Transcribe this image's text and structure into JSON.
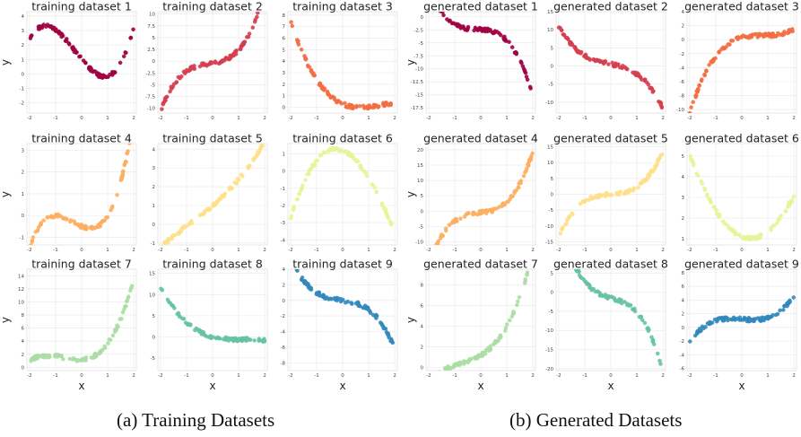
{
  "captions": {
    "left": "(a) Training Datasets",
    "right": "(b) Generated Datasets"
  },
  "axis_labels": {
    "x": "x",
    "y": "y"
  },
  "chart_data": [
    {
      "type": "scatter",
      "title": "training dataset 1",
      "color": "#9e0142",
      "xlim": [
        -2.1,
        2.1
      ],
      "ylim": [
        -2.7,
        4.3
      ],
      "xticks": [
        -2,
        -1,
        0,
        1,
        2
      ],
      "yticks": [
        -2,
        -1,
        0,
        1,
        2,
        3,
        4
      ],
      "coeffs": [
        1.0,
        -2.2,
        0.45,
        0.6
      ],
      "x_range": [
        -2,
        2
      ]
    },
    {
      "type": "scatter",
      "title": "training dataset 2",
      "color": "#d53e4f",
      "xlim": [
        -2.1,
        2.1
      ],
      "ylim": [
        -11,
        10.5
      ],
      "xticks": [
        -2,
        -1,
        0,
        1,
        2
      ],
      "yticks": [
        -10.0,
        -7.5,
        -5.0,
        -2.5,
        0.0,
        2.5,
        5.0,
        7.5,
        10.0
      ],
      "coeffs": [
        -0.45,
        0.9,
        0.6,
        1.35
      ],
      "x_range": [
        -2,
        2
      ]
    },
    {
      "type": "scatter",
      "title": "training dataset 3",
      "color": "#f46d43",
      "xlim": [
        -2.1,
        2.1
      ],
      "ylim": [
        -0.5,
        8.3
      ],
      "xticks": [
        -2,
        -1,
        0,
        1,
        2
      ],
      "yticks": [
        0,
        1,
        2,
        3,
        4,
        5,
        6,
        7,
        8
      ],
      "coeffs": [
        0.3,
        -0.97,
        0.92,
        -0.21
      ],
      "x_range": [
        -2,
        2
      ]
    },
    {
      "type": "scatter",
      "title": "training dataset 4",
      "color": "#fdae61",
      "xlim": [
        -2.1,
        2.1
      ],
      "ylim": [
        -1.35,
        3.3
      ],
      "xticks": [
        -2,
        -1,
        0,
        1,
        2
      ],
      "yticks": [
        -1,
        0,
        1,
        2,
        3
      ],
      "coeffs": [
        -0.5,
        -0.5,
        0.5,
        0.5
      ],
      "x_range": [
        -2,
        2
      ]
    },
    {
      "type": "scatter",
      "title": "training dataset 5",
      "color": "#fee08b",
      "xlim": [
        -2.1,
        2.1
      ],
      "ylim": [
        -1.1,
        4.3
      ],
      "xticks": [
        -2,
        -1,
        0,
        1,
        2
      ],
      "yticks": [
        -1,
        0,
        1,
        2,
        3,
        4
      ],
      "coeffs": [
        1.0,
        1.2,
        0.15,
        0.05
      ],
      "x_range": [
        -2,
        2
      ]
    },
    {
      "type": "scatter",
      "title": "training dataset 6",
      "color": "#e6f598",
      "xlim": [
        -2.1,
        2.1
      ],
      "ylim": [
        -4.3,
        1.6
      ],
      "xticks": [
        -2,
        -1,
        0,
        1,
        2
      ],
      "yticks": [
        -4,
        -3,
        -2,
        -1,
        0,
        1
      ],
      "coeffs": [
        1.2,
        -0.6,
        -1.1,
        0.1
      ],
      "x_range": [
        -2,
        2
      ]
    },
    {
      "type": "scatter",
      "title": "training dataset 7",
      "color": "#abdda4",
      "xlim": [
        -2.1,
        2.1
      ],
      "ylim": [
        -0.5,
        15
      ],
      "xticks": [
        -2,
        -1,
        0,
        1,
        2
      ],
      "yticks": [
        0,
        2,
        4,
        6,
        8,
        10,
        12,
        14
      ],
      "coeffs": [
        1.2,
        0.3,
        1.5,
        0.7
      ],
      "x_range": [
        -2,
        2
      ]
    },
    {
      "type": "scatter",
      "title": "training dataset 8",
      "color": "#66c2a5",
      "xlim": [
        -2.1,
        2.1
      ],
      "ylim": [
        -8,
        16
      ],
      "xticks": [
        -2,
        -1,
        0,
        1,
        2
      ],
      "yticks": [
        -5,
        0,
        5,
        10,
        15
      ],
      "coeffs": [
        0,
        -1.6,
        1.4,
        -0.4
      ],
      "x_range": [
        -2,
        2
      ]
    },
    {
      "type": "scatter",
      "title": "training dataset 9",
      "color": "#3288bd",
      "xlim": [
        -2.1,
        2.1
      ],
      "ylim": [
        -9,
        4
      ],
      "xticks": [
        -2,
        -1,
        0,
        1,
        2
      ],
      "yticks": [
        -8,
        -6,
        -4,
        -2,
        0,
        2,
        4
      ],
      "coeffs": [
        0,
        -0.5,
        -0.1,
        -0.6
      ],
      "x_range": [
        -2,
        2
      ]
    },
    {
      "type": "scatter",
      "title": "generated dataset 1",
      "color": "#9e0142",
      "xlim": [
        -2.1,
        2.1
      ],
      "ylim": [
        -18.5,
        1
      ],
      "xticks": [
        -2,
        -1,
        0,
        1,
        2
      ],
      "yticks": [
        0.0,
        -2.5,
        -5.0,
        -7.5,
        -10.0,
        -12.5,
        -15.0,
        -17.5
      ],
      "coeffs": [
        -2.4,
        -0.3,
        -0.6,
        -1.25
      ],
      "x_range": [
        -2,
        2
      ]
    },
    {
      "type": "scatter",
      "title": "generated dataset 2",
      "color": "#d53e4f",
      "xlim": [
        -2.1,
        2.1
      ],
      "ylim": [
        -13,
        15
      ],
      "xticks": [
        -2,
        -1,
        0,
        1,
        2
      ],
      "yticks": [
        -10,
        -5,
        0,
        5,
        10,
        15
      ],
      "coeffs": [
        0.5,
        -1.5,
        -0.2,
        -1.05
      ],
      "x_range": [
        -2,
        2
      ]
    },
    {
      "type": "scatter",
      "title": "generated dataset 3",
      "color": "#f46d43",
      "xlim": [
        -2.1,
        2.1
      ],
      "ylim": [
        -10.5,
        4
      ],
      "xticks": [
        -2,
        -1,
        0,
        1,
        2
      ],
      "yticks": [
        -10,
        -8,
        -6,
        -4,
        -2,
        0,
        2,
        4
      ],
      "coeffs": [
        0.3,
        1.0,
        -1.2,
        0.5
      ],
      "x_range": [
        -2,
        2
      ]
    },
    {
      "type": "scatter",
      "title": "generated dataset 4",
      "color": "#fdae61",
      "xlim": [
        -2.1,
        2.1
      ],
      "ylim": [
        -11,
        22
      ],
      "xticks": [
        -2,
        -1,
        0,
        1,
        2
      ],
      "yticks": [
        -10,
        -5,
        0,
        5,
        10,
        15,
        20
      ],
      "coeffs": [
        -0.5,
        1.2,
        0.4,
        2.0
      ],
      "x_range": [
        -2,
        2
      ]
    },
    {
      "type": "scatter",
      "title": "generated dataset 5",
      "color": "#fee08b",
      "xlim": [
        -2.1,
        2.1
      ],
      "ylim": [
        -16,
        16
      ],
      "xticks": [
        -2,
        -1,
        0,
        1,
        2
      ],
      "yticks": [
        -15,
        -10,
        -5,
        0,
        5,
        10,
        15
      ],
      "coeffs": [
        0,
        0.8,
        0,
        1.5
      ],
      "x_range": [
        -2,
        2
      ]
    },
    {
      "type": "scatter",
      "title": "generated dataset 6",
      "color": "#e6f598",
      "xlim": [
        -2.1,
        2.1
      ],
      "ylim": [
        0.7,
        5.6
      ],
      "xticks": [
        -2,
        -1,
        0,
        1,
        2
      ],
      "yticks": [
        1,
        2,
        3,
        4,
        5
      ],
      "coeffs": [
        1.1,
        -0.5,
        0.75,
        0
      ],
      "x_range": [
        -2,
        2
      ]
    },
    {
      "type": "scatter",
      "title": "generated dataset 7",
      "color": "#abdda4",
      "xlim": [
        -2.1,
        2.1
      ],
      "ylim": [
        -0.3,
        9.5
      ],
      "xticks": [
        -2,
        -1,
        0,
        1,
        2
      ],
      "yticks": [
        0,
        2,
        4,
        6,
        8
      ],
      "coeffs": [
        1.2,
        1.5,
        0.9,
        0.4
      ],
      "x_range": [
        -2,
        2
      ]
    },
    {
      "type": "scatter",
      "title": "generated dataset 8",
      "color": "#66c2a5",
      "xlim": [
        -2.1,
        2.1
      ],
      "ylim": [
        -20.5,
        6
      ],
      "xticks": [
        -2,
        -1,
        0,
        1,
        2
      ],
      "yticks": [
        5,
        0,
        -5,
        -10,
        -15,
        -20
      ],
      "coeffs": [
        -1.5,
        -2.0,
        0.2,
        -2.0
      ],
      "x_range": [
        -2,
        2
      ]
    },
    {
      "type": "scatter",
      "title": "generated dataset 9",
      "color": "#3288bd",
      "xlim": [
        -2.1,
        2.1
      ],
      "ylim": [
        -6.3,
        8.5
      ],
      "xticks": [
        -2,
        -1,
        0,
        1,
        2
      ],
      "yticks": [
        -6,
        -4,
        -2,
        0,
        2,
        4,
        6,
        8
      ],
      "coeffs": [
        1.2,
        -0.3,
        0,
        0.5
      ],
      "x_range": [
        -2,
        2
      ]
    }
  ]
}
